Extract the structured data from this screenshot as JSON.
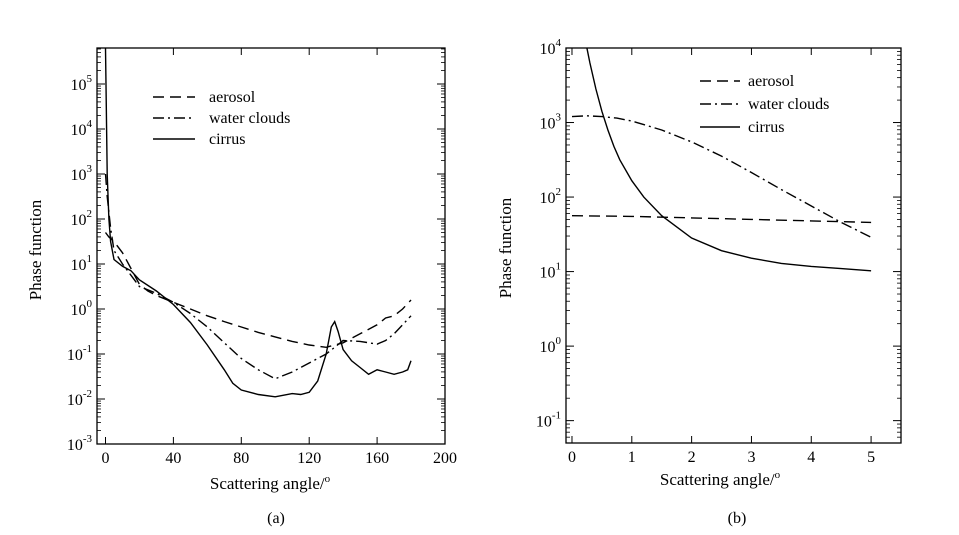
{
  "chart_data": [
    {
      "type": "line",
      "panel_label": "(a)",
      "xlabel": "Scattering angle/",
      "xlabel_sup": "o",
      "ylabel": "Phase function",
      "xlim": [
        -5,
        200
      ],
      "ylim_log10": [
        -3,
        5.8
      ],
      "yscale": "log",
      "xticks": [
        "0",
        "40",
        "80",
        "120",
        "160",
        "200"
      ],
      "xtick_values": [
        0,
        40,
        80,
        120,
        160,
        200
      ],
      "yticks_base": "10",
      "ytick_exponents": [
        "-3",
        "-2",
        "-1",
        "0",
        "1",
        "2",
        "3",
        "4",
        "5"
      ],
      "legend": [
        "aerosol",
        "water clouds",
        "cirrus"
      ],
      "series": [
        {
          "name": "aerosol",
          "style": "dashed",
          "x": [
            0,
            2,
            5,
            10,
            15,
            20,
            25,
            30,
            40,
            50,
            60,
            70,
            80,
            90,
            100,
            110,
            120,
            130,
            140,
            150,
            160,
            165,
            170,
            175,
            180
          ],
          "log10y": [
            1.7,
            1.6,
            1.5,
            1.25,
            0.9,
            0.55,
            0.4,
            0.3,
            0.15,
            0.0,
            -0.15,
            -0.28,
            -0.4,
            -0.52,
            -0.62,
            -0.72,
            -0.8,
            -0.85,
            -0.75,
            -0.55,
            -0.35,
            -0.2,
            -0.15,
            0.0,
            0.2
          ]
        },
        {
          "name": "water clouds",
          "style": "dashdot",
          "x": [
            0,
            1,
            3,
            5,
            10,
            15,
            20,
            30,
            40,
            50,
            60,
            70,
            80,
            90,
            100,
            110,
            120,
            130,
            135,
            140,
            150,
            160,
            165,
            170,
            175,
            180
          ],
          "log10y": [
            3.0,
            2.5,
            1.8,
            1.3,
            1.0,
            0.75,
            0.5,
            0.35,
            0.15,
            -0.1,
            -0.4,
            -0.75,
            -1.1,
            -1.35,
            -1.55,
            -1.4,
            -1.2,
            -1.0,
            -0.85,
            -0.7,
            -0.72,
            -0.78,
            -0.7,
            -0.55,
            -0.35,
            -0.15
          ]
        },
        {
          "name": "cirrus",
          "style": "solid",
          "x": [
            0,
            0.5,
            1,
            2,
            3,
            5,
            10,
            15,
            20,
            30,
            40,
            50,
            60,
            70,
            75,
            80,
            90,
            100,
            110,
            115,
            120,
            125,
            130,
            133,
            135,
            137,
            140,
            145,
            150,
            155,
            160,
            165,
            170,
            175,
            178,
            180
          ],
          "log10y": [
            5.8,
            4.5,
            3.0,
            2.0,
            1.5,
            1.1,
            0.95,
            0.85,
            0.65,
            0.4,
            0.1,
            -0.3,
            -0.8,
            -1.35,
            -1.65,
            -1.8,
            -1.9,
            -1.95,
            -1.88,
            -1.9,
            -1.85,
            -1.6,
            -1.0,
            -0.4,
            -0.28,
            -0.5,
            -0.9,
            -1.15,
            -1.3,
            -1.45,
            -1.35,
            -1.4,
            -1.45,
            -1.4,
            -1.35,
            -1.15
          ]
        }
      ]
    },
    {
      "type": "line",
      "panel_label": "(b)",
      "xlabel": "Scattering angle/",
      "xlabel_sup": "o",
      "ylabel": "Phase function",
      "xlim": [
        -0.1,
        5.5
      ],
      "ylim_log10": [
        -1.3,
        4
      ],
      "yscale": "log",
      "xticks": [
        "0",
        "1",
        "2",
        "3",
        "4",
        "5"
      ],
      "xtick_values": [
        0,
        1,
        2,
        3,
        4,
        5
      ],
      "yticks_base": "10",
      "ytick_exponents": [
        "-1",
        "0",
        "1",
        "2",
        "3",
        "4"
      ],
      "legend": [
        "aerosol",
        "water clouds",
        "cirrus"
      ],
      "series": [
        {
          "name": "aerosol",
          "style": "dashed",
          "x": [
            0,
            1,
            2,
            3,
            4,
            5
          ],
          "log10y": [
            1.75,
            1.74,
            1.72,
            1.7,
            1.68,
            1.66
          ]
        },
        {
          "name": "water clouds",
          "style": "dashdot",
          "x": [
            0,
            0.25,
            0.5,
            0.75,
            1,
            1.5,
            2,
            2.5,
            3,
            3.5,
            4,
            4.5,
            5
          ],
          "log10y": [
            3.08,
            3.09,
            3.08,
            3.06,
            3.02,
            2.9,
            2.74,
            2.55,
            2.33,
            2.1,
            1.88,
            1.66,
            1.46
          ]
        },
        {
          "name": "cirrus",
          "style": "solid",
          "x": [
            0.25,
            0.3,
            0.4,
            0.5,
            0.6,
            0.7,
            0.8,
            1.0,
            1.2,
            1.5,
            2,
            2.5,
            3,
            3.5,
            4,
            4.5,
            5
          ],
          "log10y": [
            4.0,
            3.8,
            3.45,
            3.15,
            2.9,
            2.68,
            2.5,
            2.22,
            2.0,
            1.75,
            1.45,
            1.28,
            1.18,
            1.11,
            1.07,
            1.04,
            1.01
          ]
        }
      ]
    }
  ]
}
